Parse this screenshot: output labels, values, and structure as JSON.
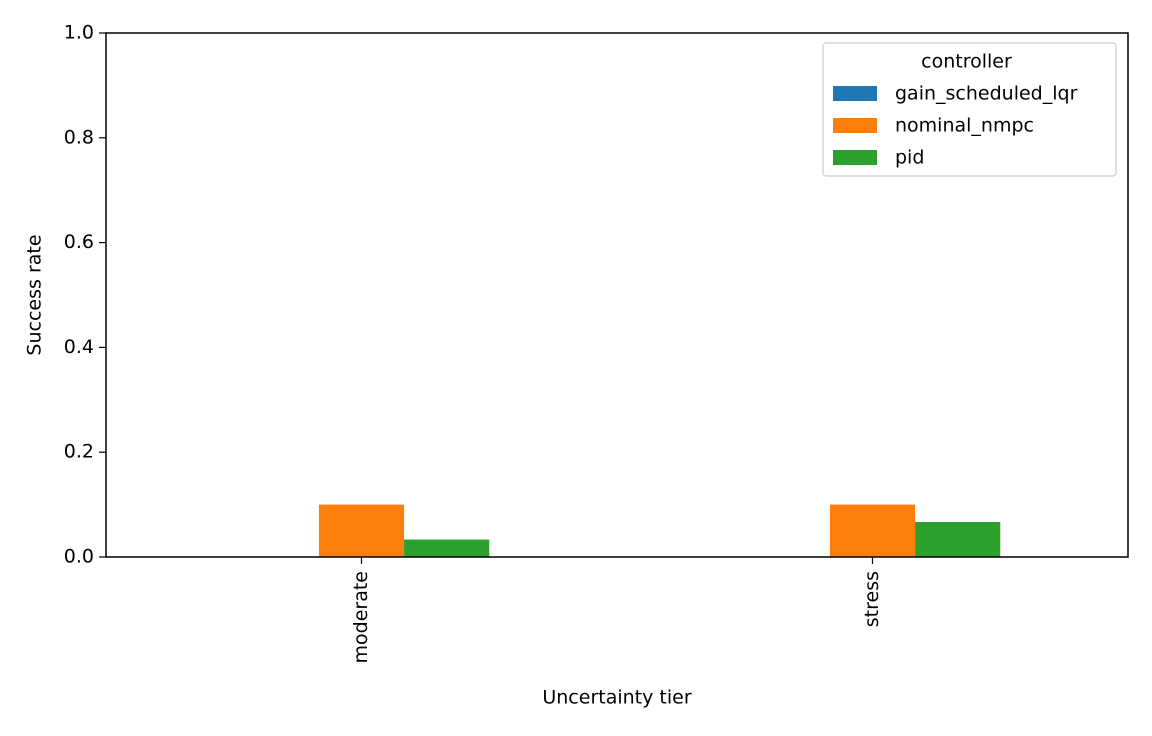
{
  "chart_data": {
    "type": "bar",
    "xlabel": "Uncertainty tier",
    "ylabel": "Success rate",
    "categories": [
      "moderate",
      "stress"
    ],
    "series": [
      {
        "name": "gain_scheduled_lqr",
        "color": "#1f77b4",
        "values": [
          0,
          0
        ]
      },
      {
        "name": "nominal_nmpc",
        "color": "#ff7f0e",
        "values": [
          0.1,
          0.1
        ]
      },
      {
        "name": "pid",
        "color": "#2ca02c",
        "values": [
          0.0333,
          0.0667
        ]
      }
    ],
    "legend_title": "controller",
    "legend": "upper right",
    "ylim": [
      0,
      1
    ],
    "yticks": [
      {
        "value": 0,
        "label": "0.0"
      },
      0.2,
      0.4,
      0.6,
      0.8,
      {
        "value": 1,
        "label": "1.0"
      }
    ],
    "grid": false
  }
}
